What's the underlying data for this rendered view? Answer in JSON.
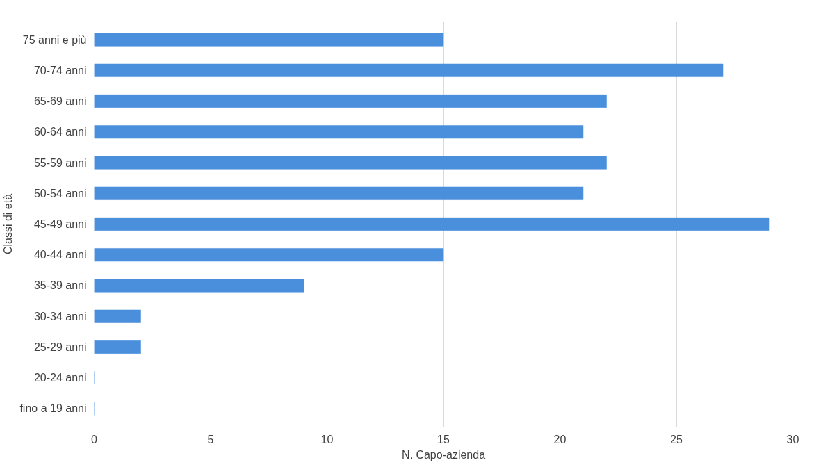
{
  "chart_data": {
    "type": "bar",
    "orientation": "horizontal",
    "xlabel": "N. Capo-azienda",
    "ylabel": "Classi di età",
    "categories": [
      "75 anni e più",
      "70-74 anni",
      "65-69 anni",
      "60-64 anni",
      "55-59 anni",
      "50-54 anni",
      "45-49 anni",
      "40-44 anni",
      "35-39 anni",
      "30-34 anni",
      "25-29 anni",
      "20-24 anni",
      "fino a 19 anni"
    ],
    "values": [
      15,
      27,
      22,
      21,
      22,
      21,
      29,
      15,
      9,
      2,
      2,
      0,
      0
    ],
    "color": "#4a8fdc",
    "xlim": [
      0,
      30
    ],
    "xticks": [
      0,
      5,
      10,
      15,
      20,
      25,
      30
    ],
    "grid": "x"
  }
}
